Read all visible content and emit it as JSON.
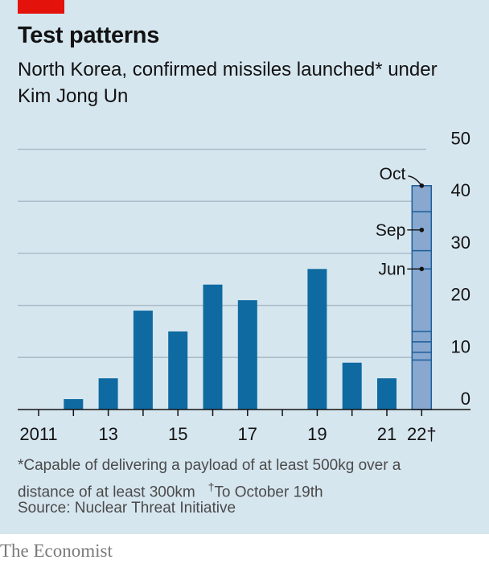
{
  "colors": {
    "background": "#d6e6ef",
    "bar": "#0f6aa1",
    "bar_latest": "#88a8cf",
    "bar_latest_edge": "#1d5d99",
    "grid": "#a9bcc8",
    "accent": "#e3120b"
  },
  "header": {
    "title": "Test patterns",
    "subtitle": "North Korea, confirmed missiles launched* under Kim Jong Un"
  },
  "footer": {
    "note_line1": "*Capable of delivering a payload of at least 500kg over a",
    "note_line2": "distance of at least 300km",
    "dagger_mark": "†",
    "dagger_note": "To October 19th",
    "source": "Source: Nuclear Threat Initiative",
    "brand": "The Economist"
  },
  "chart_data": {
    "type": "bar",
    "title": "Test patterns",
    "subtitle": "North Korea, confirmed missiles launched* under Kim Jong Un",
    "categories": [
      "2011",
      "2012",
      "2013",
      "2014",
      "2015",
      "2016",
      "2017",
      "2018",
      "2019",
      "2020",
      "2021",
      "2022"
    ],
    "values": [
      0,
      2,
      6,
      19,
      15,
      24,
      21,
      0,
      27,
      9,
      6,
      43
    ],
    "x_tick_labels": [
      {
        "category": "2011",
        "text": "2011"
      },
      {
        "category": "2013",
        "text": "13"
      },
      {
        "category": "2015",
        "text": "15"
      },
      {
        "category": "2017",
        "text": "17"
      },
      {
        "category": "2019",
        "text": "19"
      },
      {
        "category": "2021",
        "text": "21"
      },
      {
        "category": "2022",
        "text": "22†"
      }
    ],
    "y_ticks": [
      0,
      10,
      20,
      30,
      40,
      50
    ],
    "ylim": [
      0,
      50
    ],
    "y_axis_side": "right",
    "grid": true,
    "highlight_category": "2022",
    "highlight_segments": [
      9.5,
      11,
      13,
      15,
      27,
      30.5,
      38
    ],
    "annotations": [
      {
        "label": "Jun",
        "value": 27
      },
      {
        "label": "Sep",
        "value": 34.5
      },
      {
        "label": "Oct",
        "value": 43
      }
    ]
  }
}
